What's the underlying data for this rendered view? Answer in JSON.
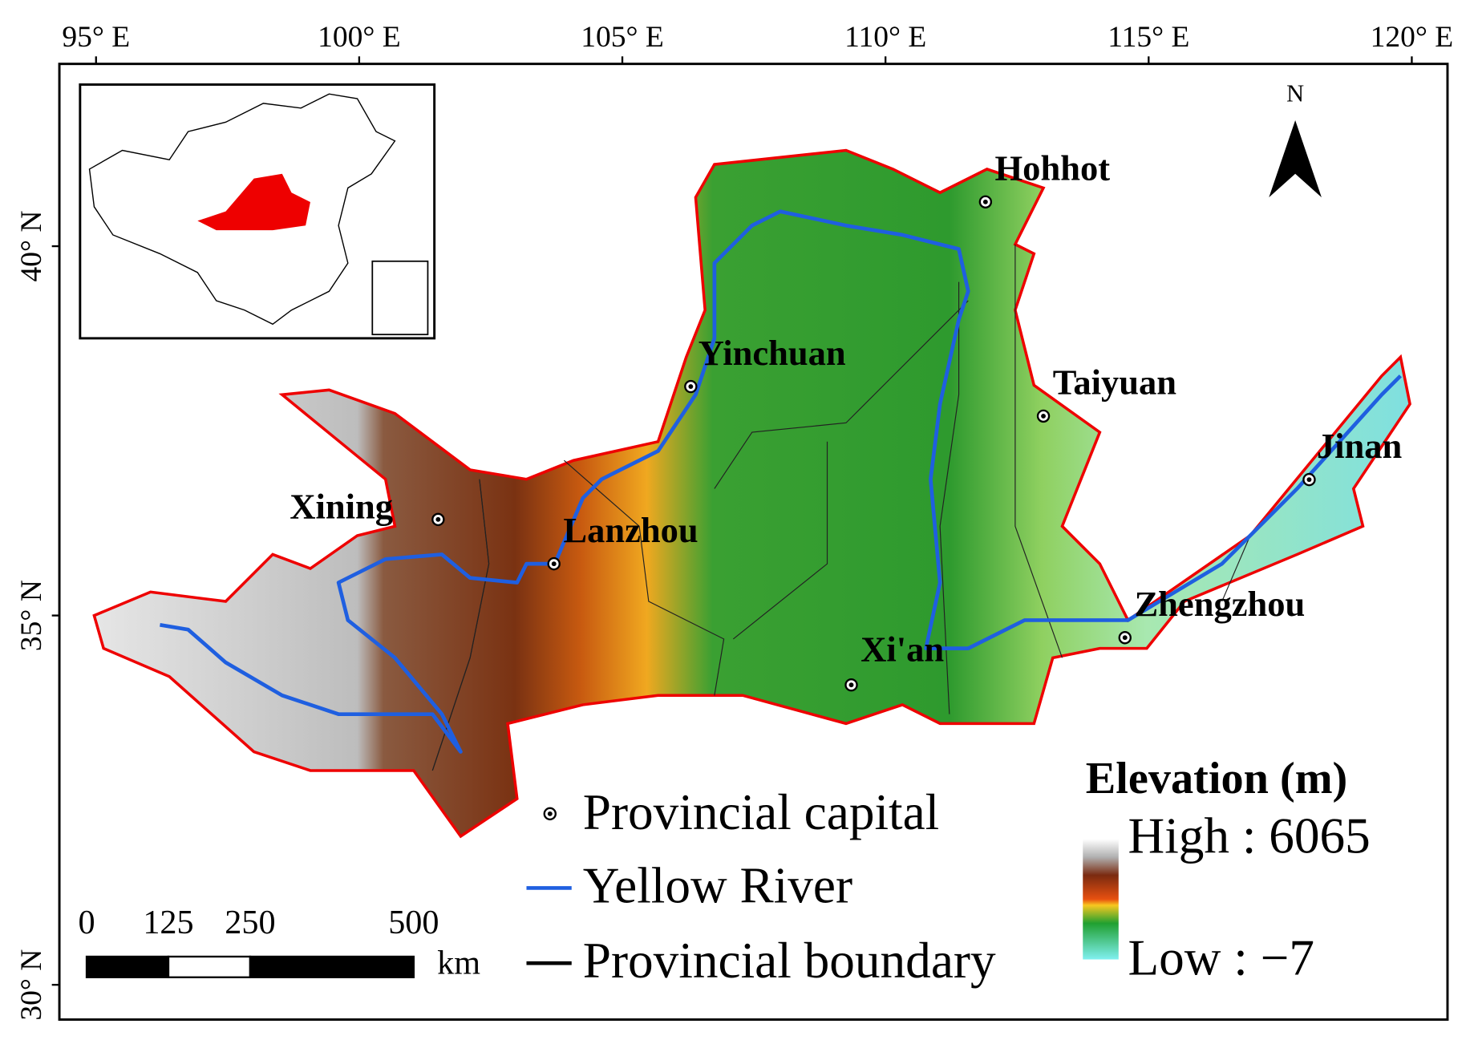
{
  "map": {
    "lon_ticks": [
      {
        "value": 95,
        "label": "95° E"
      },
      {
        "value": 100,
        "label": "100° E"
      },
      {
        "value": 105,
        "label": "105° E"
      },
      {
        "value": 110,
        "label": "110° E"
      },
      {
        "value": 115,
        "label": "115° E"
      },
      {
        "value": 120,
        "label": "120° E"
      }
    ],
    "lat_ticks": [
      {
        "value": 40,
        "label": "40° N"
      },
      {
        "value": 35,
        "label": "35° N"
      },
      {
        "value": 30,
        "label": "30° N"
      }
    ],
    "cities": [
      {
        "name": "Hohhot",
        "lon": 111.9,
        "lat": 40.6
      },
      {
        "name": "Yinchuan",
        "lon": 106.3,
        "lat": 38.1
      },
      {
        "name": "Taiyuan",
        "lon": 113.0,
        "lat": 37.7
      },
      {
        "name": "Jinan",
        "lon": 118.05,
        "lat": 36.84
      },
      {
        "name": "Xining",
        "lon": 101.5,
        "lat": 36.3
      },
      {
        "name": "Lanzhou",
        "lon": 103.7,
        "lat": 35.7
      },
      {
        "name": "Zhengzhou",
        "lon": 114.55,
        "lat": 34.7
      },
      {
        "name": "Xi'an",
        "lon": 109.35,
        "lat": 34.06
      }
    ],
    "north": "N",
    "legend": {
      "capital": "Provincial capital",
      "river": "Yellow River",
      "boundary": "Provincial boundary"
    },
    "elevation": {
      "title": "Elevation (m)",
      "high": "High : 6065",
      "low": "Low : −7"
    },
    "scale_bar": {
      "ticks": [
        0,
        125,
        250,
        500
      ],
      "unit": "km"
    }
  }
}
